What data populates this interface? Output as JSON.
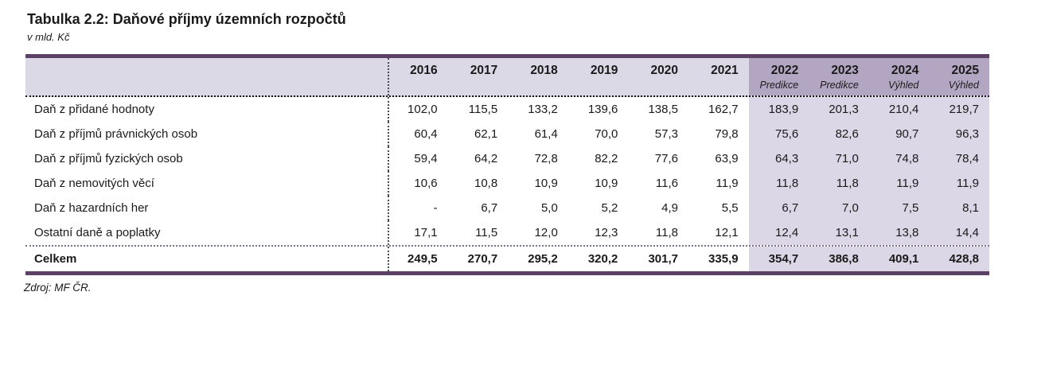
{
  "title": "Tabulka 2.2: Daňové příjmy územních rozpočtů",
  "subtitle": "v mld. Kč",
  "source": "Zdroj: MF ČR.",
  "colors": {
    "border_dark": "#5b4265",
    "header_light": "#dcd9e7",
    "header_dark": "#b3a6c3",
    "forecast_bg": "#dbd7e6",
    "text": "#1a1a1a"
  },
  "table": {
    "columns": [
      {
        "year": "2016",
        "sublabel": "",
        "forecast": false
      },
      {
        "year": "2017",
        "sublabel": "",
        "forecast": false
      },
      {
        "year": "2018",
        "sublabel": "",
        "forecast": false
      },
      {
        "year": "2019",
        "sublabel": "",
        "forecast": false
      },
      {
        "year": "2020",
        "sublabel": "",
        "forecast": false
      },
      {
        "year": "2021",
        "sublabel": "",
        "forecast": false
      },
      {
        "year": "2022",
        "sublabel": "Predikce",
        "forecast": true
      },
      {
        "year": "2023",
        "sublabel": "Predikce",
        "forecast": true
      },
      {
        "year": "2024",
        "sublabel": "Výhled",
        "forecast": true
      },
      {
        "year": "2025",
        "sublabel": "Výhled",
        "forecast": true
      }
    ],
    "rows": [
      {
        "label": "Daň z přidané hodnoty",
        "values": [
          "102,0",
          "115,5",
          "133,2",
          "139,6",
          "138,5",
          "162,7",
          "183,9",
          "201,3",
          "210,4",
          "219,7"
        ]
      },
      {
        "label": "Daň z příjmů právnických osob",
        "values": [
          "60,4",
          "62,1",
          "61,4",
          "70,0",
          "57,3",
          "79,8",
          "75,6",
          "82,6",
          "90,7",
          "96,3"
        ]
      },
      {
        "label": "Daň z příjmů fyzických osob",
        "values": [
          "59,4",
          "64,2",
          "72,8",
          "82,2",
          "77,6",
          "63,9",
          "64,3",
          "71,0",
          "74,8",
          "78,4"
        ]
      },
      {
        "label": "Daň z nemovitých věcí",
        "values": [
          "10,6",
          "10,8",
          "10,9",
          "10,9",
          "11,6",
          "11,9",
          "11,8",
          "11,8",
          "11,9",
          "11,9"
        ]
      },
      {
        "label": "Daň z hazardních her",
        "values": [
          "-",
          "6,7",
          "5,0",
          "5,2",
          "4,9",
          "5,5",
          "6,7",
          "7,0",
          "7,5",
          "8,1"
        ]
      },
      {
        "label": "Ostatní daně a poplatky",
        "values": [
          "17,1",
          "11,5",
          "12,0",
          "12,3",
          "11,8",
          "12,1",
          "12,4",
          "13,1",
          "13,8",
          "14,4"
        ]
      }
    ],
    "total_row": {
      "label": "Celkem",
      "values": [
        "249,5",
        "270,7",
        "295,2",
        "320,2",
        "301,7",
        "335,9",
        "354,7",
        "386,8",
        "409,1",
        "428,8"
      ]
    }
  }
}
